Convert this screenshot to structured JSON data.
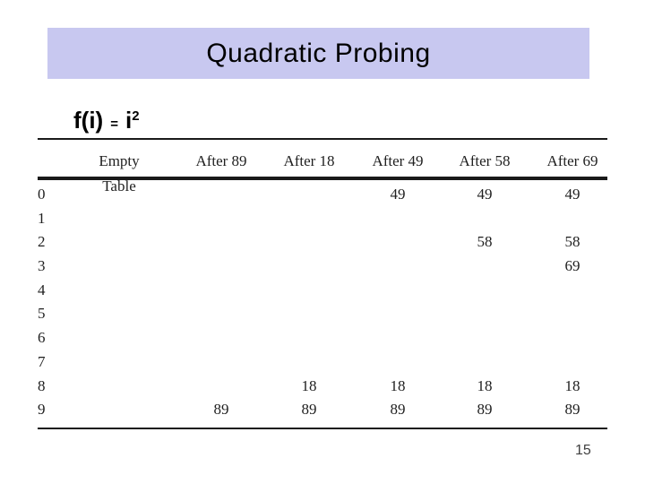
{
  "slide": {
    "title": "Quadratic Probing",
    "formula": {
      "function": "f(i)",
      "equals": "=",
      "variable": "i",
      "exponent": "2"
    },
    "page_number": "15"
  },
  "table": {
    "column_headers": [
      "Empty Table",
      "After 89",
      "After 18",
      "After 49",
      "After 58",
      "After 69"
    ],
    "row_labels": [
      "0",
      "1",
      "2",
      "3",
      "4",
      "5",
      "6",
      "7",
      "8",
      "9"
    ],
    "cells": [
      [
        "",
        "",
        "",
        "49",
        "49",
        "49"
      ],
      [
        "",
        "",
        "",
        "",
        "",
        ""
      ],
      [
        "",
        "",
        "",
        "",
        "58",
        "58"
      ],
      [
        "",
        "",
        "",
        "",
        "",
        "69"
      ],
      [
        "",
        "",
        "",
        "",
        "",
        ""
      ],
      [
        "",
        "",
        "",
        "",
        "",
        ""
      ],
      [
        "",
        "",
        "",
        "",
        "",
        ""
      ],
      [
        "",
        "",
        "",
        "",
        "",
        ""
      ],
      [
        "",
        "",
        "18",
        "18",
        "18",
        "18"
      ],
      [
        "",
        "89",
        "89",
        "89",
        "89",
        "89"
      ]
    ]
  },
  "colors": {
    "title_bar_bg": "#c8c8f0",
    "title_text": "#000000",
    "formula_text": "#000000",
    "table_text": "#1f1f1f",
    "rule": "#1a1a1a",
    "page_number": "#404040"
  }
}
